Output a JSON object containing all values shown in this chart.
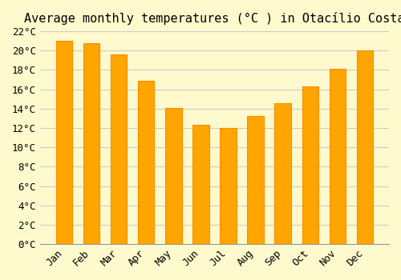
{
  "title": "Average monthly temperatures (°C ) in Otacílio Costa",
  "months": [
    "Jan",
    "Feb",
    "Mar",
    "Apr",
    "May",
    "Jun",
    "Jul",
    "Aug",
    "Sep",
    "Oct",
    "Nov",
    "Dec"
  ],
  "values": [
    21.0,
    20.8,
    19.6,
    16.9,
    14.1,
    12.3,
    12.0,
    13.2,
    14.6,
    16.3,
    18.1,
    20.0
  ],
  "bar_color": "#FFA500",
  "bar_edge_color": "#FF8C00",
  "ylim": [
    0,
    22
  ],
  "yticks": [
    0,
    2,
    4,
    6,
    8,
    10,
    12,
    14,
    16,
    18,
    20,
    22
  ],
  "background_color": "#FFFACD",
  "grid_color": "#CCCCCC",
  "title_fontsize": 11,
  "tick_fontsize": 9,
  "font_family": "monospace"
}
